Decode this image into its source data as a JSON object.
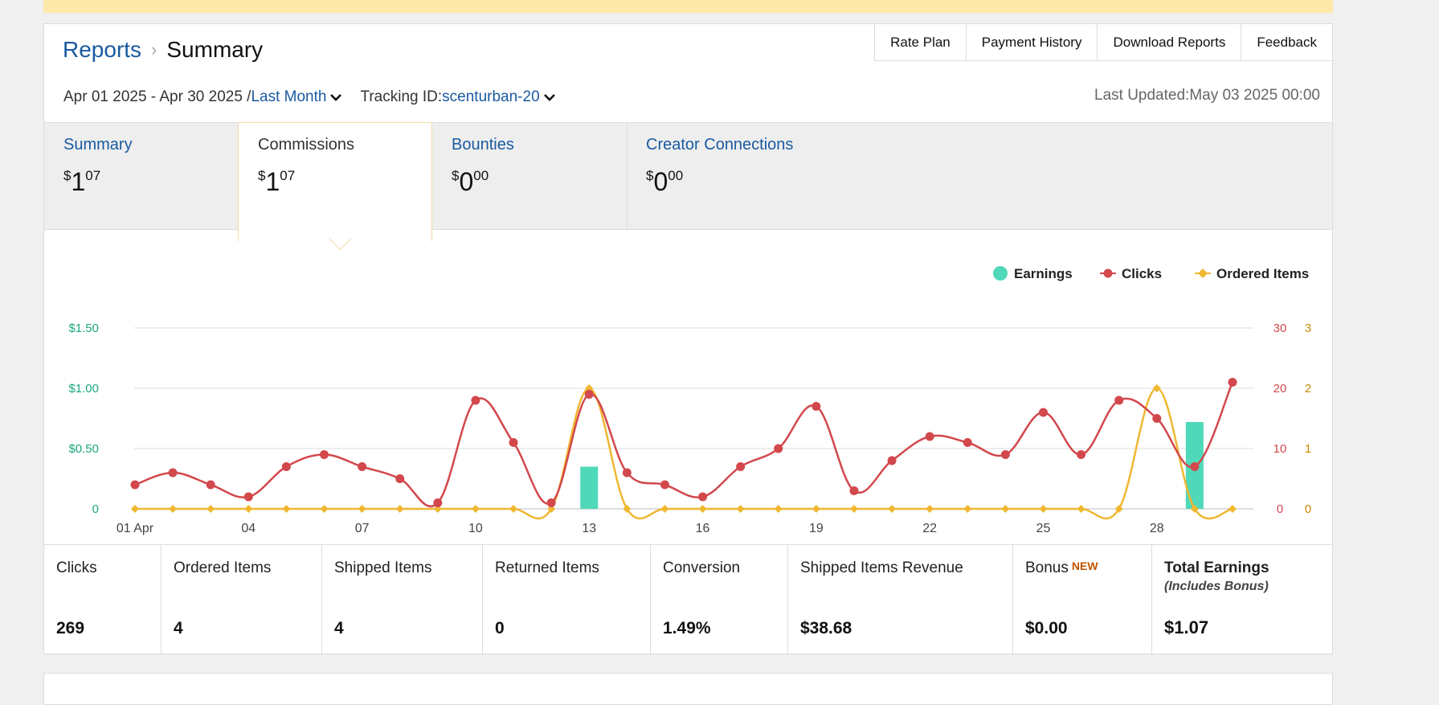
{
  "header": {
    "breadcrumb_link": "Reports",
    "breadcrumb_sep": "›",
    "breadcrumb_current": "Summary",
    "nav_tabs": [
      "Rate Plan",
      "Payment History",
      "Download Reports",
      "Feedback"
    ],
    "date_range": "Apr 01 2025 - Apr 30 2025 /",
    "date_preset": "Last Month",
    "tracking_label": "Tracking ID:",
    "tracking_value": "scenturban-20",
    "last_updated": "Last Updated:May 03 2025 00:00"
  },
  "metric_tabs": [
    {
      "title": "Summary",
      "currency": "$",
      "whole": "1",
      "cents": "07",
      "active": false
    },
    {
      "title": "Commissions",
      "currency": "$",
      "whole": "1",
      "cents": "07",
      "active": true
    },
    {
      "title": "Bounties",
      "currency": "$",
      "whole": "0",
      "cents": "00",
      "active": false
    },
    {
      "title": "Creator Connections",
      "currency": "$",
      "whole": "0",
      "cents": "00",
      "active": false
    }
  ],
  "chart_data": {
    "type": "line",
    "legend": [
      "Earnings",
      "Clicks",
      "Ordered Items"
    ],
    "legend_placement": "top-right",
    "colors": {
      "earnings": "#4fd9b9",
      "clicks": "#d2484c",
      "ordered_items": "#f0b731",
      "grid": "#dddddd",
      "left_axis": "#1aa780"
    },
    "x_tick_labels": [
      "01 Apr",
      "04",
      "07",
      "10",
      "13",
      "16",
      "19",
      "22",
      "25",
      "28"
    ],
    "x_days": [
      1,
      2,
      3,
      4,
      5,
      6,
      7,
      8,
      9,
      10,
      11,
      12,
      13,
      14,
      15,
      16,
      17,
      18,
      19,
      20,
      21,
      22,
      23,
      24,
      25,
      26,
      27,
      28,
      29,
      30
    ],
    "earnings_axis": {
      "ticks": [
        "0",
        "$0.50",
        "$1.00",
        "$1.50"
      ],
      "ylim": [
        0,
        1.5
      ]
    },
    "clicks_axis": {
      "ticks": [
        "0",
        "10",
        "20",
        "30"
      ],
      "ylim": [
        0,
        30
      ]
    },
    "items_axis": {
      "ticks": [
        "0",
        "1",
        "2",
        "3"
      ],
      "ylim": [
        0,
        3
      ]
    },
    "series": [
      {
        "name": "Earnings",
        "kind": "bar",
        "axis": "earnings",
        "values": [
          0,
          0,
          0,
          0,
          0,
          0,
          0,
          0,
          0,
          0,
          0,
          0,
          0.35,
          0,
          0,
          0,
          0,
          0,
          0,
          0,
          0,
          0,
          0,
          0,
          0,
          0,
          0,
          0,
          0.72,
          0
        ]
      },
      {
        "name": "Clicks",
        "kind": "line",
        "axis": "clicks",
        "values": [
          4,
          6,
          4,
          2,
          7,
          9,
          7,
          5,
          1,
          18,
          11,
          1,
          19,
          6,
          4,
          2,
          7,
          10,
          17,
          3,
          8,
          12,
          11,
          9,
          16,
          9,
          18,
          15,
          7,
          21
        ]
      },
      {
        "name": "Ordered Items",
        "kind": "line",
        "axis": "items",
        "values": [
          0,
          0,
          0,
          0,
          0,
          0,
          0,
          0,
          0,
          0,
          0,
          0,
          2,
          0,
          0,
          0,
          0,
          0,
          0,
          0,
          0,
          0,
          0,
          0,
          0,
          0,
          0,
          2,
          0,
          0
        ]
      }
    ]
  },
  "stats": [
    {
      "label": "Clicks",
      "value": "269"
    },
    {
      "label": "Ordered Items",
      "value": "4"
    },
    {
      "label": "Shipped Items",
      "value": "4"
    },
    {
      "label": "Returned Items",
      "value": "0"
    },
    {
      "label": "Conversion",
      "value": "1.49%"
    },
    {
      "label": "Shipped Items Revenue",
      "value": "$38.68"
    },
    {
      "label": "Bonus",
      "badge": "NEW",
      "value": "$0.00"
    },
    {
      "label": "Total Earnings",
      "sublabel": "(Includes Bonus)",
      "value": "$1.07"
    }
  ]
}
